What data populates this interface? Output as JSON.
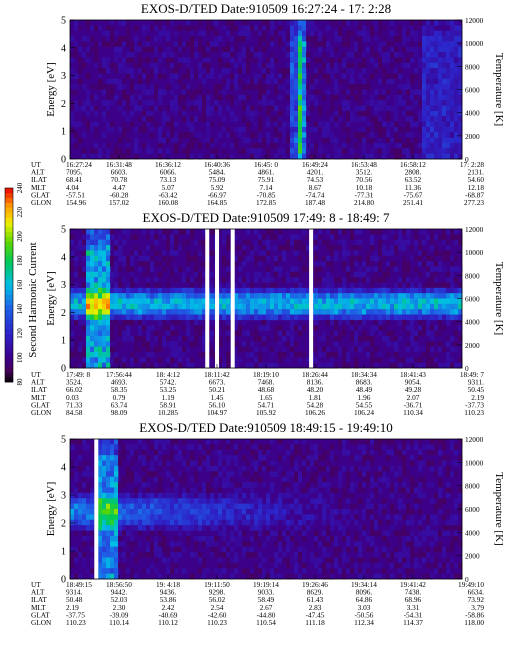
{
  "figure": {
    "colorbar": {
      "label": "Second Harmonic Current",
      "ticks": [
        "80",
        "100",
        "120",
        "140",
        "160",
        "180",
        "200",
        "220",
        "240"
      ]
    },
    "ephemeris_labels": [
      "UT",
      "ALT",
      "ILAT",
      "MLT",
      "GLAT",
      "GLON"
    ]
  },
  "chart_data": [
    {
      "type": "heatmap",
      "title": "EXOS-D/TED  Date:910509  16:27:24 - 17: 2:28",
      "ylabel": "Energy [eV]",
      "ylabel_right": "Temperature [K]",
      "ylim": [
        0,
        5
      ],
      "ylim_right": [
        0,
        12000
      ],
      "yticks": [
        "0",
        "1",
        "2",
        "3",
        "4",
        "5"
      ],
      "yticks_right": [
        "0",
        "2000",
        "4000",
        "6000",
        "8000",
        "10000",
        "12000"
      ],
      "background_level": 100,
      "band": null,
      "spikes": [
        {
          "x": 0.57,
          "width": 0.018,
          "level": 140
        },
        {
          "x": 0.585,
          "width": 0.008,
          "level": 160
        },
        {
          "x": 0.94,
          "width": 0.05,
          "level": 120
        }
      ],
      "table": {
        "UT": [
          "16:27:24",
          "16:31:48",
          "16:36:12",
          "16:40:36",
          "16:45: 0",
          "16:49:24",
          "16:53:48",
          "16:58:12",
          "17: 2:28"
        ],
        "ALT": [
          "7095.",
          "6603.",
          "6066.",
          "5484.",
          "4861.",
          "4201.",
          "3512.",
          "2808.",
          "2131."
        ],
        "ILAT": [
          "68.41",
          "70.78",
          "73.13",
          "75.09",
          "75.91",
          "74.53",
          "70.56",
          "63.52",
          "54.60"
        ],
        "MLT": [
          "4.04",
          "4.47",
          "5.07",
          "5.92",
          "7.14",
          "8.67",
          "10.18",
          "11.36",
          "12.18"
        ],
        "GLAT": [
          "-57.51",
          "-60.28",
          "-63.42",
          "-66.97",
          "-70.85",
          "-74.74",
          "-77.31",
          "-75.67",
          "-68.87"
        ],
        "GLON": [
          "154.96",
          "157.02",
          "160.08",
          "164.85",
          "172.85",
          "187.48",
          "214.80",
          "251.41",
          "277.23"
        ]
      }
    },
    {
      "type": "heatmap",
      "title": "EXOS-D/TED   Date:910509  17:49: 8 - 18:49: 7",
      "ylabel": "Energy [eV]",
      "ylabel_right": "Temperature [K]",
      "ylim": [
        0,
        5
      ],
      "ylim_right": [
        0,
        12000
      ],
      "yticks": [
        "0",
        "1",
        "2",
        "3",
        "4",
        "5"
      ],
      "yticks_right": [
        "0",
        "2000",
        "4000",
        "6000",
        "8000",
        "10000",
        "12000"
      ],
      "background_level": 100,
      "band": {
        "center": 2.3,
        "halfwidth": 0.6,
        "level": 160,
        "start_x": 0.0
      },
      "gaps": [
        0.345,
        0.37,
        0.41,
        0.61
      ],
      "spikes": [
        {
          "x": 0.065,
          "width": 0.03,
          "level": 170
        }
      ],
      "table": {
        "UT": [
          "17:49: 8",
          "17:56:44",
          "18: 4:12",
          "18:11:42",
          "18:19:10",
          "18:26:44",
          "18:34:34",
          "18:41:43",
          "18:49: 7"
        ],
        "ALT": [
          "3524.",
          "4693.",
          "5742.",
          "6673.",
          "7468.",
          "8136.",
          "8683.",
          "9054.",
          "9311."
        ],
        "ILAT": [
          "66.02",
          "58.35",
          "53.25",
          "50.21",
          "48.68",
          "48.20",
          "48.49",
          "49.28",
          "50.45"
        ],
        "MLT": [
          "0.03",
          "0.79",
          "1.19",
          "1.45",
          "1.65",
          "1.81",
          "1.96",
          "2.07",
          "2.19"
        ],
        "GLAT": [
          "71.33",
          "63.74",
          "58.91",
          "56.10",
          "54.71",
          "54.28",
          "54.55",
          "-36.71",
          "-37.73"
        ],
        "GLON": [
          "84.58",
          "98.09",
          "10.285",
          "104.97",
          "105.92",
          "106.26",
          "106.24",
          "110.34",
          "110.23"
        ]
      }
    },
    {
      "type": "heatmap",
      "title": "EXOS-D/TED  Date:910509  18:49:15 - 19:49:10",
      "ylabel": "Energy [eV]",
      "ylabel_right": "Temperature [K]",
      "ylim": [
        0,
        5
      ],
      "ylim_right": [
        0,
        12000
      ],
      "yticks": [
        "0",
        "1",
        "2",
        "3",
        "4",
        "5"
      ],
      "yticks_right": [
        "0",
        "2000",
        "4000",
        "6000",
        "8000",
        "10000",
        "12000"
      ],
      "background_level": 100,
      "band": {
        "center": 2.4,
        "halfwidth": 0.7,
        "level": 150,
        "decay_x": 0.45
      },
      "gaps": [
        0.062
      ],
      "spikes": [
        {
          "x": 0.09,
          "width": 0.025,
          "level": 160
        }
      ],
      "table": {
        "UT": [
          "18:49:15",
          "18:56:50",
          "19: 4:18",
          "19:11:50",
          "19:19:14",
          "19:26:46",
          "19:34:14",
          "19:41:42",
          "19:49:10"
        ],
        "ALT": [
          "9314.",
          "9442.",
          "9436.",
          "9298.",
          "9033.",
          "8629.",
          "8096.",
          "7438.",
          "6634."
        ],
        "ILAT": [
          "50.48",
          "52.03",
          "53.86",
          "56.02",
          "58.49",
          "61.43",
          "64.86",
          "68.96",
          "73.92"
        ],
        "MLT": [
          "2.19",
          "2.30",
          "2.42",
          "2.54",
          "2.67",
          "2.83",
          "3.03",
          "3.31",
          "3.79"
        ],
        "GLAT": [
          "-37.75",
          "-39.09",
          "-40.69",
          "-42.60",
          "-44.80",
          "-47.45",
          "-50.56",
          "-54.31",
          "-58.86"
        ],
        "GLON": [
          "110.23",
          "110.14",
          "110.12",
          "110.23",
          "110.54",
          "111.18",
          "112.34",
          "114.37",
          "118.00"
        ]
      }
    }
  ]
}
